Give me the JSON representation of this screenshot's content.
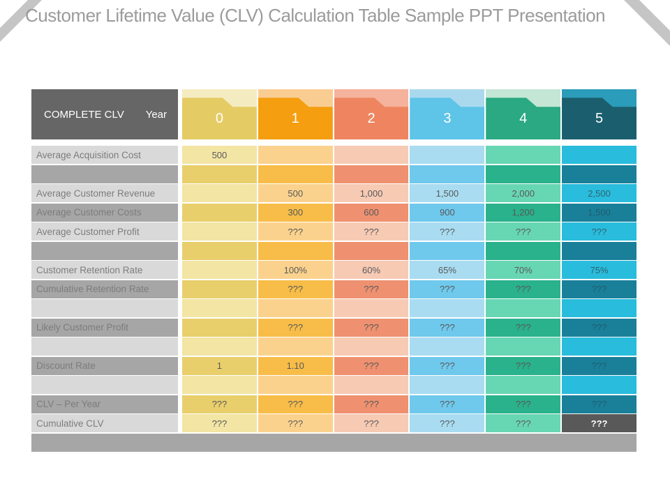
{
  "title": "Customer Lifetime Value (CLV) Calculation Table Sample PPT Presentation",
  "table": {
    "corner_label": "COMPLETE CLV",
    "year_label": "Year",
    "years": [
      "0",
      "1",
      "2",
      "3",
      "4",
      "5"
    ],
    "rows": [
      {
        "label": "Average Acquisition Cost",
        "shade": "light",
        "values": [
          "500",
          "",
          "",
          "",
          "",
          ""
        ]
      },
      {
        "label": "",
        "shade": "dark",
        "values": [
          "",
          "",
          "",
          "",
          "",
          ""
        ]
      },
      {
        "label": "Average Customer Revenue",
        "shade": "light",
        "values": [
          "",
          "500",
          "1,000",
          "1,500",
          "2,000",
          "2,500"
        ]
      },
      {
        "label": "Average Customer Costs",
        "shade": "dark",
        "values": [
          "",
          "300",
          "600",
          "900",
          "1,200",
          "1,500"
        ]
      },
      {
        "label": "Average Customer Profit",
        "shade": "light",
        "values": [
          "",
          "???",
          "???",
          "???",
          "???",
          "???"
        ]
      },
      {
        "label": "",
        "shade": "dark",
        "values": [
          "",
          "",
          "",
          "",
          "",
          ""
        ]
      },
      {
        "label": "Customer Retention Rate",
        "shade": "light",
        "values": [
          "",
          "100%",
          "60%",
          "65%",
          "70%",
          "75%"
        ]
      },
      {
        "label": "Cumulative Retention Rate",
        "shade": "dark",
        "values": [
          "",
          "???",
          "???",
          "???",
          "???",
          "???"
        ]
      },
      {
        "label": "",
        "shade": "light",
        "values": [
          "",
          "",
          "",
          "",
          "",
          ""
        ]
      },
      {
        "label": "Likely Customer Profit",
        "shade": "dark",
        "values": [
          "",
          "???",
          "???",
          "???",
          "???",
          "???"
        ]
      },
      {
        "label": "",
        "shade": "light",
        "values": [
          "",
          "",
          "",
          "",
          "",
          ""
        ]
      },
      {
        "label": "Discount Rate",
        "shade": "dark",
        "values": [
          "1",
          "1.10",
          "???",
          "???",
          "???",
          "???"
        ]
      },
      {
        "label": "",
        "shade": "light",
        "values": [
          "",
          "",
          "",
          "",
          "",
          ""
        ]
      },
      {
        "label": "CLV – Per Year",
        "shade": "dark",
        "values": [
          "???",
          "???",
          "???",
          "???",
          "???",
          "???"
        ]
      },
      {
        "label": "Cumulative CLV",
        "shade": "light",
        "values": [
          "???",
          "???",
          "???",
          "???",
          "???",
          "???"
        ],
        "highlight_last": true
      }
    ]
  },
  "colors": {
    "title_text": "#9b9b9b",
    "corner_ribbon": "#c5c5c5",
    "header_label_bg": "#666667",
    "header_text": "#ffffff",
    "label_light_bg": "#d9d9d9",
    "label_dark_bg": "#a6a6a6",
    "label_text": "#7c7c7c",
    "value_text": "#595959",
    "footer_bg": "#a6a6a6",
    "highlight_bg": "#595959",
    "highlight_text": "#ffffff",
    "columns": [
      {
        "name": "year-0",
        "header": "#e5cb64",
        "header_top": "#f4ecc0",
        "light": "#f3e5a4",
        "dark": "#e9cf6b"
      },
      {
        "name": "year-1",
        "header": "#f59e0f",
        "header_top": "#f9cd92",
        "light": "#fbd28d",
        "dark": "#f8bd48"
      },
      {
        "name": "year-2",
        "header": "#ee8560",
        "header_top": "#f5b29c",
        "light": "#f7cab4",
        "dark": "#ef9170"
      },
      {
        "name": "year-3",
        "header": "#5ec4e8",
        "header_top": "#aad9ee",
        "light": "#a9dcf1",
        "dark": "#6fc9ec"
      },
      {
        "name": "year-4",
        "header": "#2aa982",
        "header_top": "#c3e6d5",
        "light": "#67d6b3",
        "dark": "#29b28b"
      },
      {
        "name": "year-5",
        "header": "#1b5e6e",
        "header_top": "#2b9cb9",
        "light": "#29bcdc",
        "dark": "#1a809a",
        "light_text": "#2f6372",
        "dark_text": "#1e5e6e"
      }
    ]
  }
}
